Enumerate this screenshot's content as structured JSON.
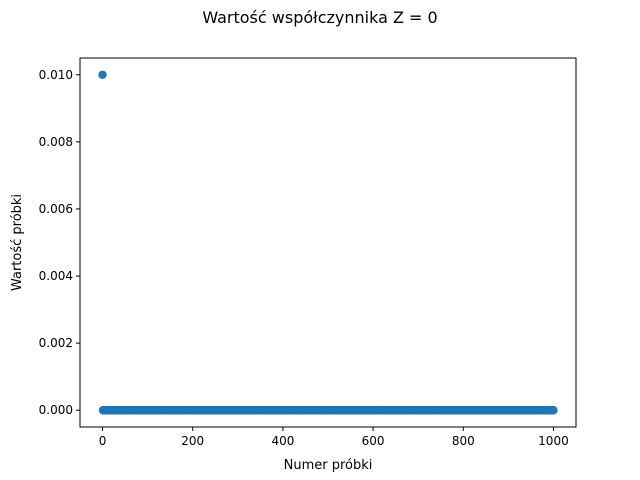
{
  "chart_data": {
    "type": "scatter",
    "title": "Wartość współczynnika Z = 0",
    "xlabel": "Numer próbki",
    "ylabel": "Wartość próbki",
    "xlim": [
      -50,
      1050
    ],
    "ylim": [
      -0.0005,
      0.0105
    ],
    "xticks": [
      0,
      200,
      400,
      600,
      800,
      1000
    ],
    "xtick_labels": [
      "0",
      "200",
      "400",
      "600",
      "800",
      "1000"
    ],
    "yticks": [
      0.0,
      0.002,
      0.004,
      0.006,
      0.008,
      0.01
    ],
    "ytick_labels": [
      "0.000",
      "0.002",
      "0.004",
      "0.006",
      "0.008",
      "0.010"
    ],
    "grid": false,
    "marker_color": "#1f77b4",
    "series": [
      {
        "x_start": 0,
        "x_end": 1000,
        "x_step": 1,
        "values_rule": "y = 0.01 at x = 0, y = 0 for every x from 1 to 1000",
        "points": [
          [
            0,
            0.01
          ],
          [
            1,
            0.0
          ],
          [
            1000,
            0.0
          ]
        ]
      }
    ]
  }
}
